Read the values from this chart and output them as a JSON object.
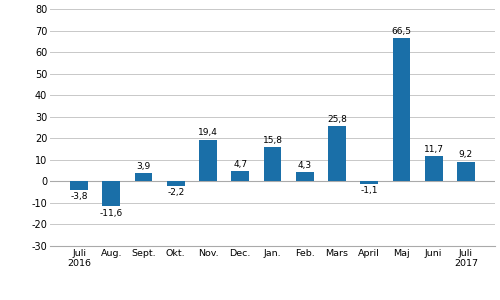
{
  "categories": [
    "Juli\n2016",
    "Aug.",
    "Sept.",
    "Okt.",
    "Nov.",
    "Dec.",
    "Jan.",
    "Feb.",
    "Mars",
    "April",
    "Maj",
    "Juni",
    "Juli\n2017"
  ],
  "values": [
    -3.8,
    -11.6,
    3.9,
    -2.2,
    19.4,
    4.7,
    15.8,
    4.3,
    25.8,
    -1.1,
    66.5,
    11.7,
    9.2
  ],
  "bar_color": "#1a6fa8",
  "ylim": [
    -30,
    80
  ],
  "yticks": [
    -30,
    -20,
    -10,
    0,
    10,
    20,
    30,
    40,
    50,
    60,
    70,
    80
  ],
  "background_color": "#ffffff",
  "grid_color": "#c8c8c8",
  "label_fontsize": 6.8,
  "value_fontsize": 6.5,
  "tick_fontsize": 7.0,
  "bar_width": 0.55
}
